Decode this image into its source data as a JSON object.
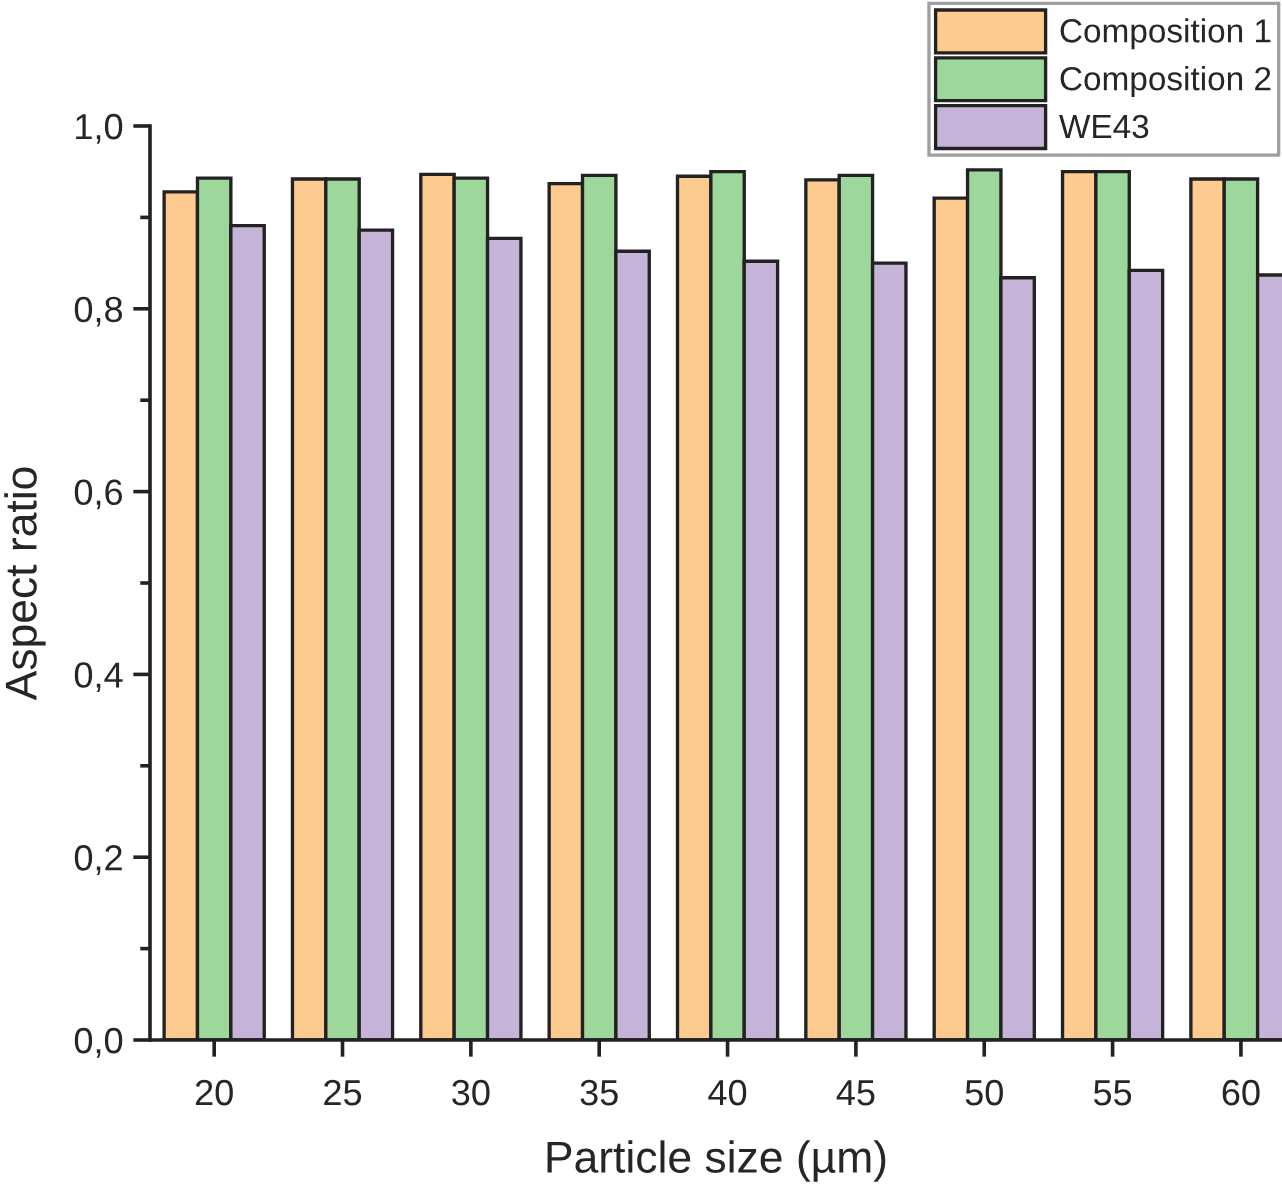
{
  "chart_data": {
    "type": "bar",
    "xlabel": "Particle size (µm)",
    "ylabel": "Aspect ratio",
    "categories": [
      "20",
      "25",
      "30",
      "35",
      "40",
      "45",
      "50",
      "55",
      "60"
    ],
    "series": [
      {
        "name": "Composition 1",
        "color": "#fdcb8f",
        "values": [
          0.928,
          0.942,
          0.947,
          0.937,
          0.945,
          0.941,
          0.921,
          0.95,
          0.942
        ]
      },
      {
        "name": "Composition 2",
        "color": "#9ed79c",
        "values": [
          0.943,
          0.942,
          0.943,
          0.946,
          0.95,
          0.946,
          0.952,
          0.95,
          0.942
        ]
      },
      {
        "name": "WE43",
        "color": "#c6b4d8",
        "values": [
          0.891,
          0.886,
          0.877,
          0.863,
          0.852,
          0.85,
          0.834,
          0.842,
          0.837
        ]
      }
    ],
    "ylim": [
      0,
      1.0
    ],
    "yticks": [
      {
        "value": 0,
        "label": "0,0"
      },
      {
        "value": 0.1,
        "label": null
      },
      {
        "value": 0.2,
        "label": "0,2"
      },
      {
        "value": 0.3,
        "label": null
      },
      {
        "value": 0.4,
        "label": "0,4"
      },
      {
        "value": 0.5,
        "label": null
      },
      {
        "value": 0.6,
        "label": "0,6"
      },
      {
        "value": 0.7,
        "label": null
      },
      {
        "value": 0.8,
        "label": "0,8"
      },
      {
        "value": 0.9,
        "label": null
      },
      {
        "value": 1.0,
        "label": "1,0"
      }
    ],
    "grid": false,
    "legend": "top right"
  }
}
